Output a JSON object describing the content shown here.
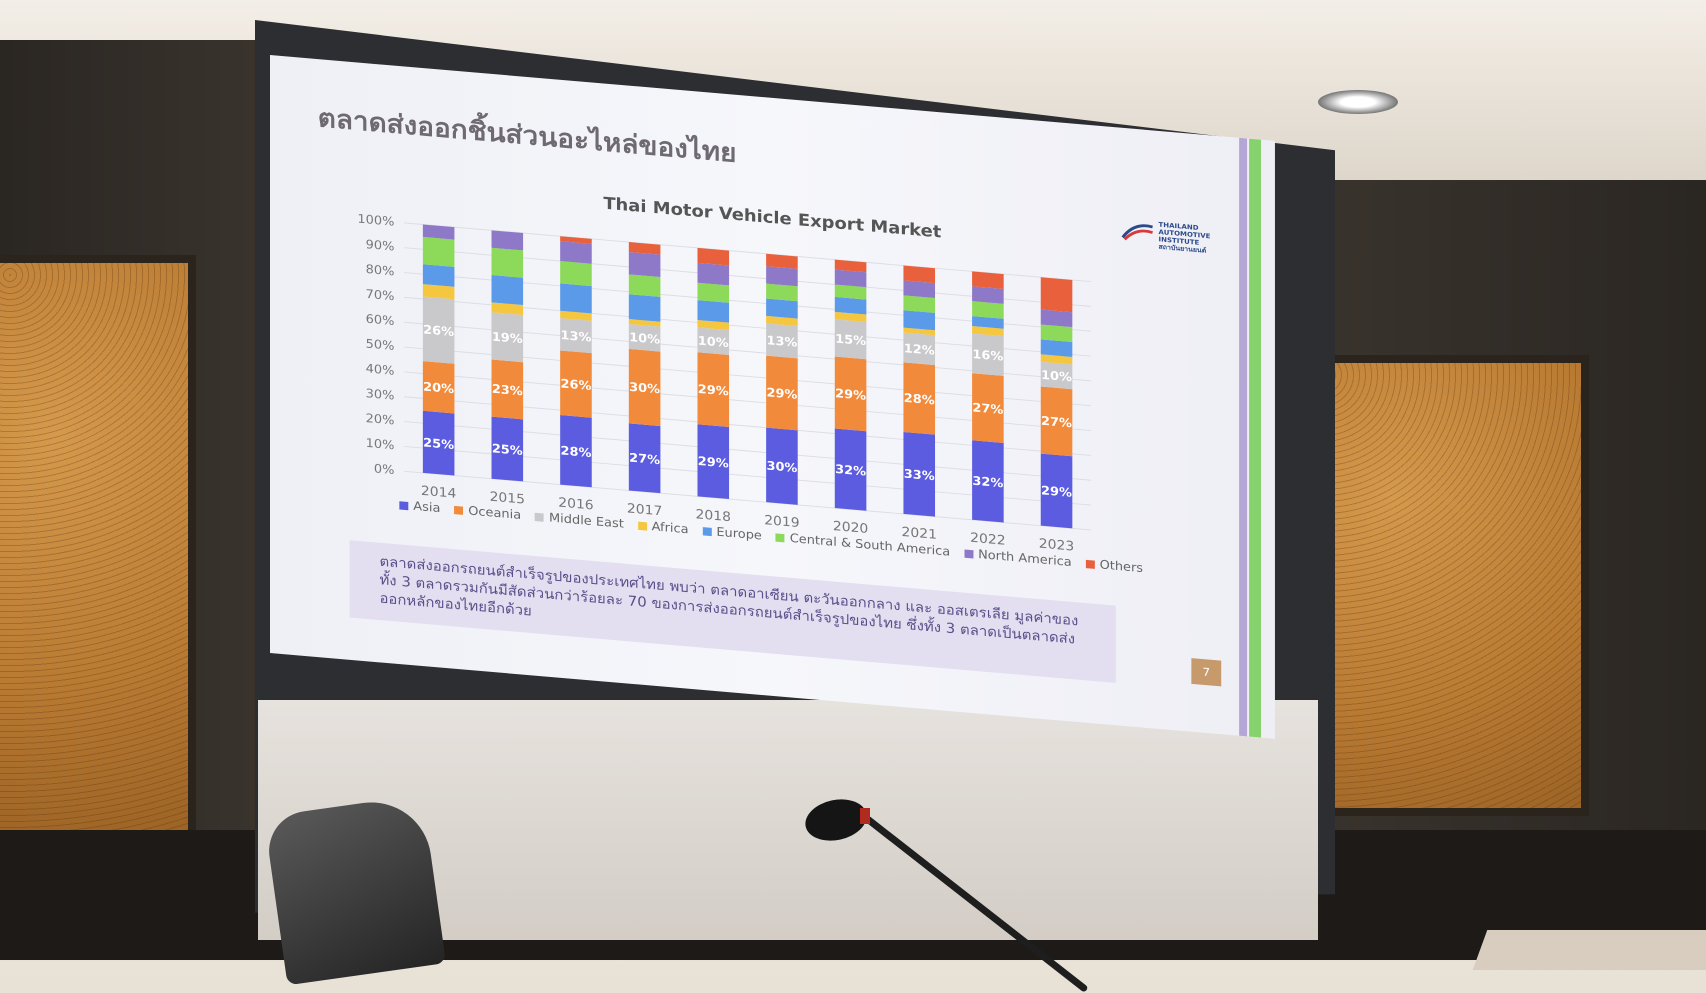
{
  "slide": {
    "title": "ตลาดส่งออกชิ้นส่วนอะไหล่ของไทย",
    "logo_text": "THAILAND AUTOMOTIVE INSTITUTE สถาบันยานยนต์",
    "page_number": "7",
    "note": "ตลาดส่งออกรถยนต์สำเร็จรูปของประเทศไทย พบว่า ตลาดอาเซียน ตะวันออกกลาง และ ออสเตรเลีย มูลค่าของทั้ง 3 ตลาดรวมกันมีสัดส่วนกว่าร้อยละ 70 ของการส่งออกรถยนต์สำเร็จรูปของไทย ซึ่งทั้ง 3 ตลาดเป็นตลาดส่งออกหลักของไทยอีกด้วย"
  },
  "chart_data": {
    "type": "bar",
    "stacked": true,
    "title": "Thai Motor Vehicle Export Market",
    "categories": [
      "2014",
      "2015",
      "2016",
      "2017",
      "2018",
      "2019",
      "2020",
      "2021",
      "2022",
      "2023"
    ],
    "y_ticks": [
      "0%",
      "10%",
      "20%",
      "30%",
      "40%",
      "50%",
      "60%",
      "70%",
      "80%",
      "90%",
      "100%"
    ],
    "ylim": [
      0,
      100
    ],
    "legend_position": "bottom",
    "series": [
      {
        "name": "Asia",
        "color": "#5b5ce0",
        "values": [
          25,
          25,
          28,
          27,
          29,
          30,
          32,
          33,
          32,
          29
        ],
        "labels": [
          "25%",
          "25%",
          "28%",
          "27%",
          "29%",
          "30%",
          "32%",
          "33%",
          "32%",
          "29%"
        ]
      },
      {
        "name": "Oceania",
        "color": "#f28a3c",
        "values": [
          20,
          23,
          26,
          30,
          29,
          29,
          29,
          28,
          27,
          27
        ],
        "labels": [
          "20%",
          "23%",
          "26%",
          "30%",
          "29%",
          "29%",
          "29%",
          "28%",
          "27%",
          "27%"
        ]
      },
      {
        "name": "Middle East",
        "color": "#c9c9cc",
        "values": [
          26,
          19,
          13,
          10,
          10,
          13,
          15,
          12,
          16,
          10
        ],
        "labels": [
          "26%",
          "19%",
          "13%",
          "10%",
          "10%",
          "13%",
          "15%",
          "12%",
          "16%",
          "10%"
        ]
      },
      {
        "name": "Africa",
        "color": "#f5c63f",
        "values": [
          5,
          4,
          3,
          2,
          3,
          3,
          3,
          2,
          3,
          3
        ],
        "labels": []
      },
      {
        "name": "Europe",
        "color": "#5a9ae8",
        "values": [
          8,
          11,
          11,
          10,
          8,
          7,
          6,
          7,
          4,
          6
        ],
        "labels": []
      },
      {
        "name": "Central & South America",
        "color": "#8dd95a",
        "values": [
          11,
          11,
          9,
          8,
          7,
          6,
          5,
          6,
          6,
          6
        ],
        "labels": []
      },
      {
        "name": "North America",
        "color": "#8d79c7",
        "values": [
          5,
          7,
          8,
          9,
          8,
          7,
          6,
          6,
          6,
          6
        ],
        "labels": []
      },
      {
        "name": "Others",
        "color": "#e8603c",
        "values": [
          0,
          0,
          2,
          4,
          6,
          5,
          4,
          6,
          6,
          13
        ],
        "labels": []
      }
    ]
  }
}
